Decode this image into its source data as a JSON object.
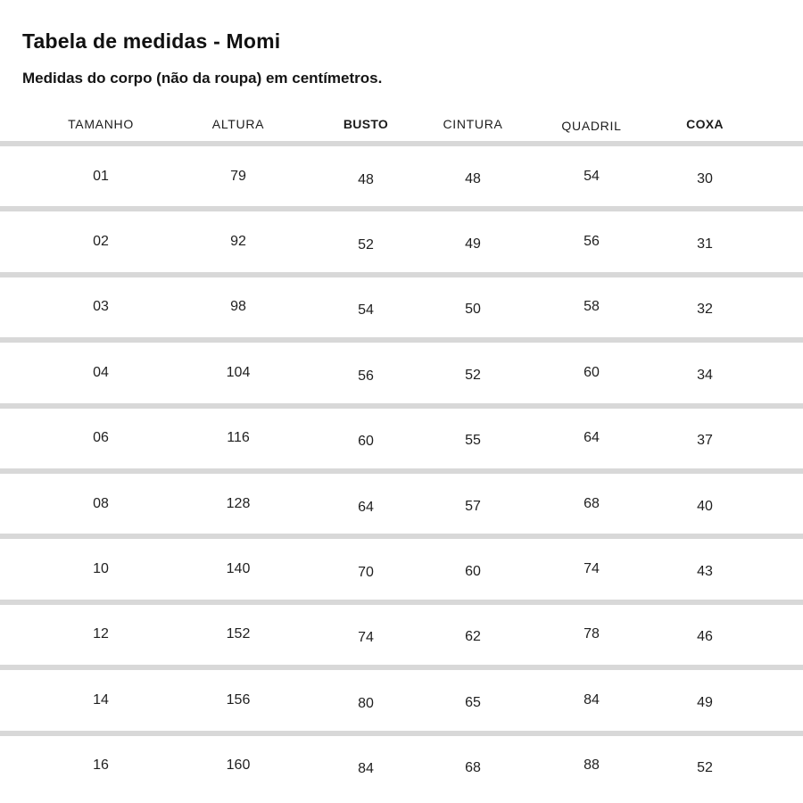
{
  "page": {
    "title": "Tabela de medidas - Momi",
    "subtitle": "Medidas do corpo (não da roupa) em centímetros."
  },
  "chart_data": {
    "type": "table",
    "title": "Tabela de medidas - Momi",
    "subtitle": "Medidas do corpo (não da roupa) em centímetros.",
    "columns": [
      "TAMANHO",
      "ALTURA",
      "BUSTO",
      "CINTURA",
      "QUADRIL",
      "COXA"
    ],
    "bold_columns": [
      "BUSTO",
      "COXA"
    ],
    "rows": [
      [
        "01",
        "79",
        "48",
        "48",
        "54",
        "30"
      ],
      [
        "02",
        "92",
        "52",
        "49",
        "56",
        "31"
      ],
      [
        "03",
        "98",
        "54",
        "50",
        "58",
        "32"
      ],
      [
        "04",
        "104",
        "56",
        "52",
        "60",
        "34"
      ],
      [
        "06",
        "116",
        "60",
        "55",
        "64",
        "37"
      ],
      [
        "08",
        "128",
        "64",
        "57",
        "68",
        "40"
      ],
      [
        "10",
        "140",
        "70",
        "60",
        "74",
        "43"
      ],
      [
        "12",
        "152",
        "74",
        "62",
        "78",
        "46"
      ],
      [
        "14",
        "156",
        "80",
        "65",
        "84",
        "49"
      ],
      [
        "16",
        "160",
        "84",
        "68",
        "88",
        "52"
      ]
    ],
    "layout": {
      "grid": "horizontal-dividers-only",
      "legend": "none"
    }
  },
  "colors": {
    "background": "#ffffff",
    "divider": "#d8d8d8",
    "text": "#1f1f1f"
  }
}
